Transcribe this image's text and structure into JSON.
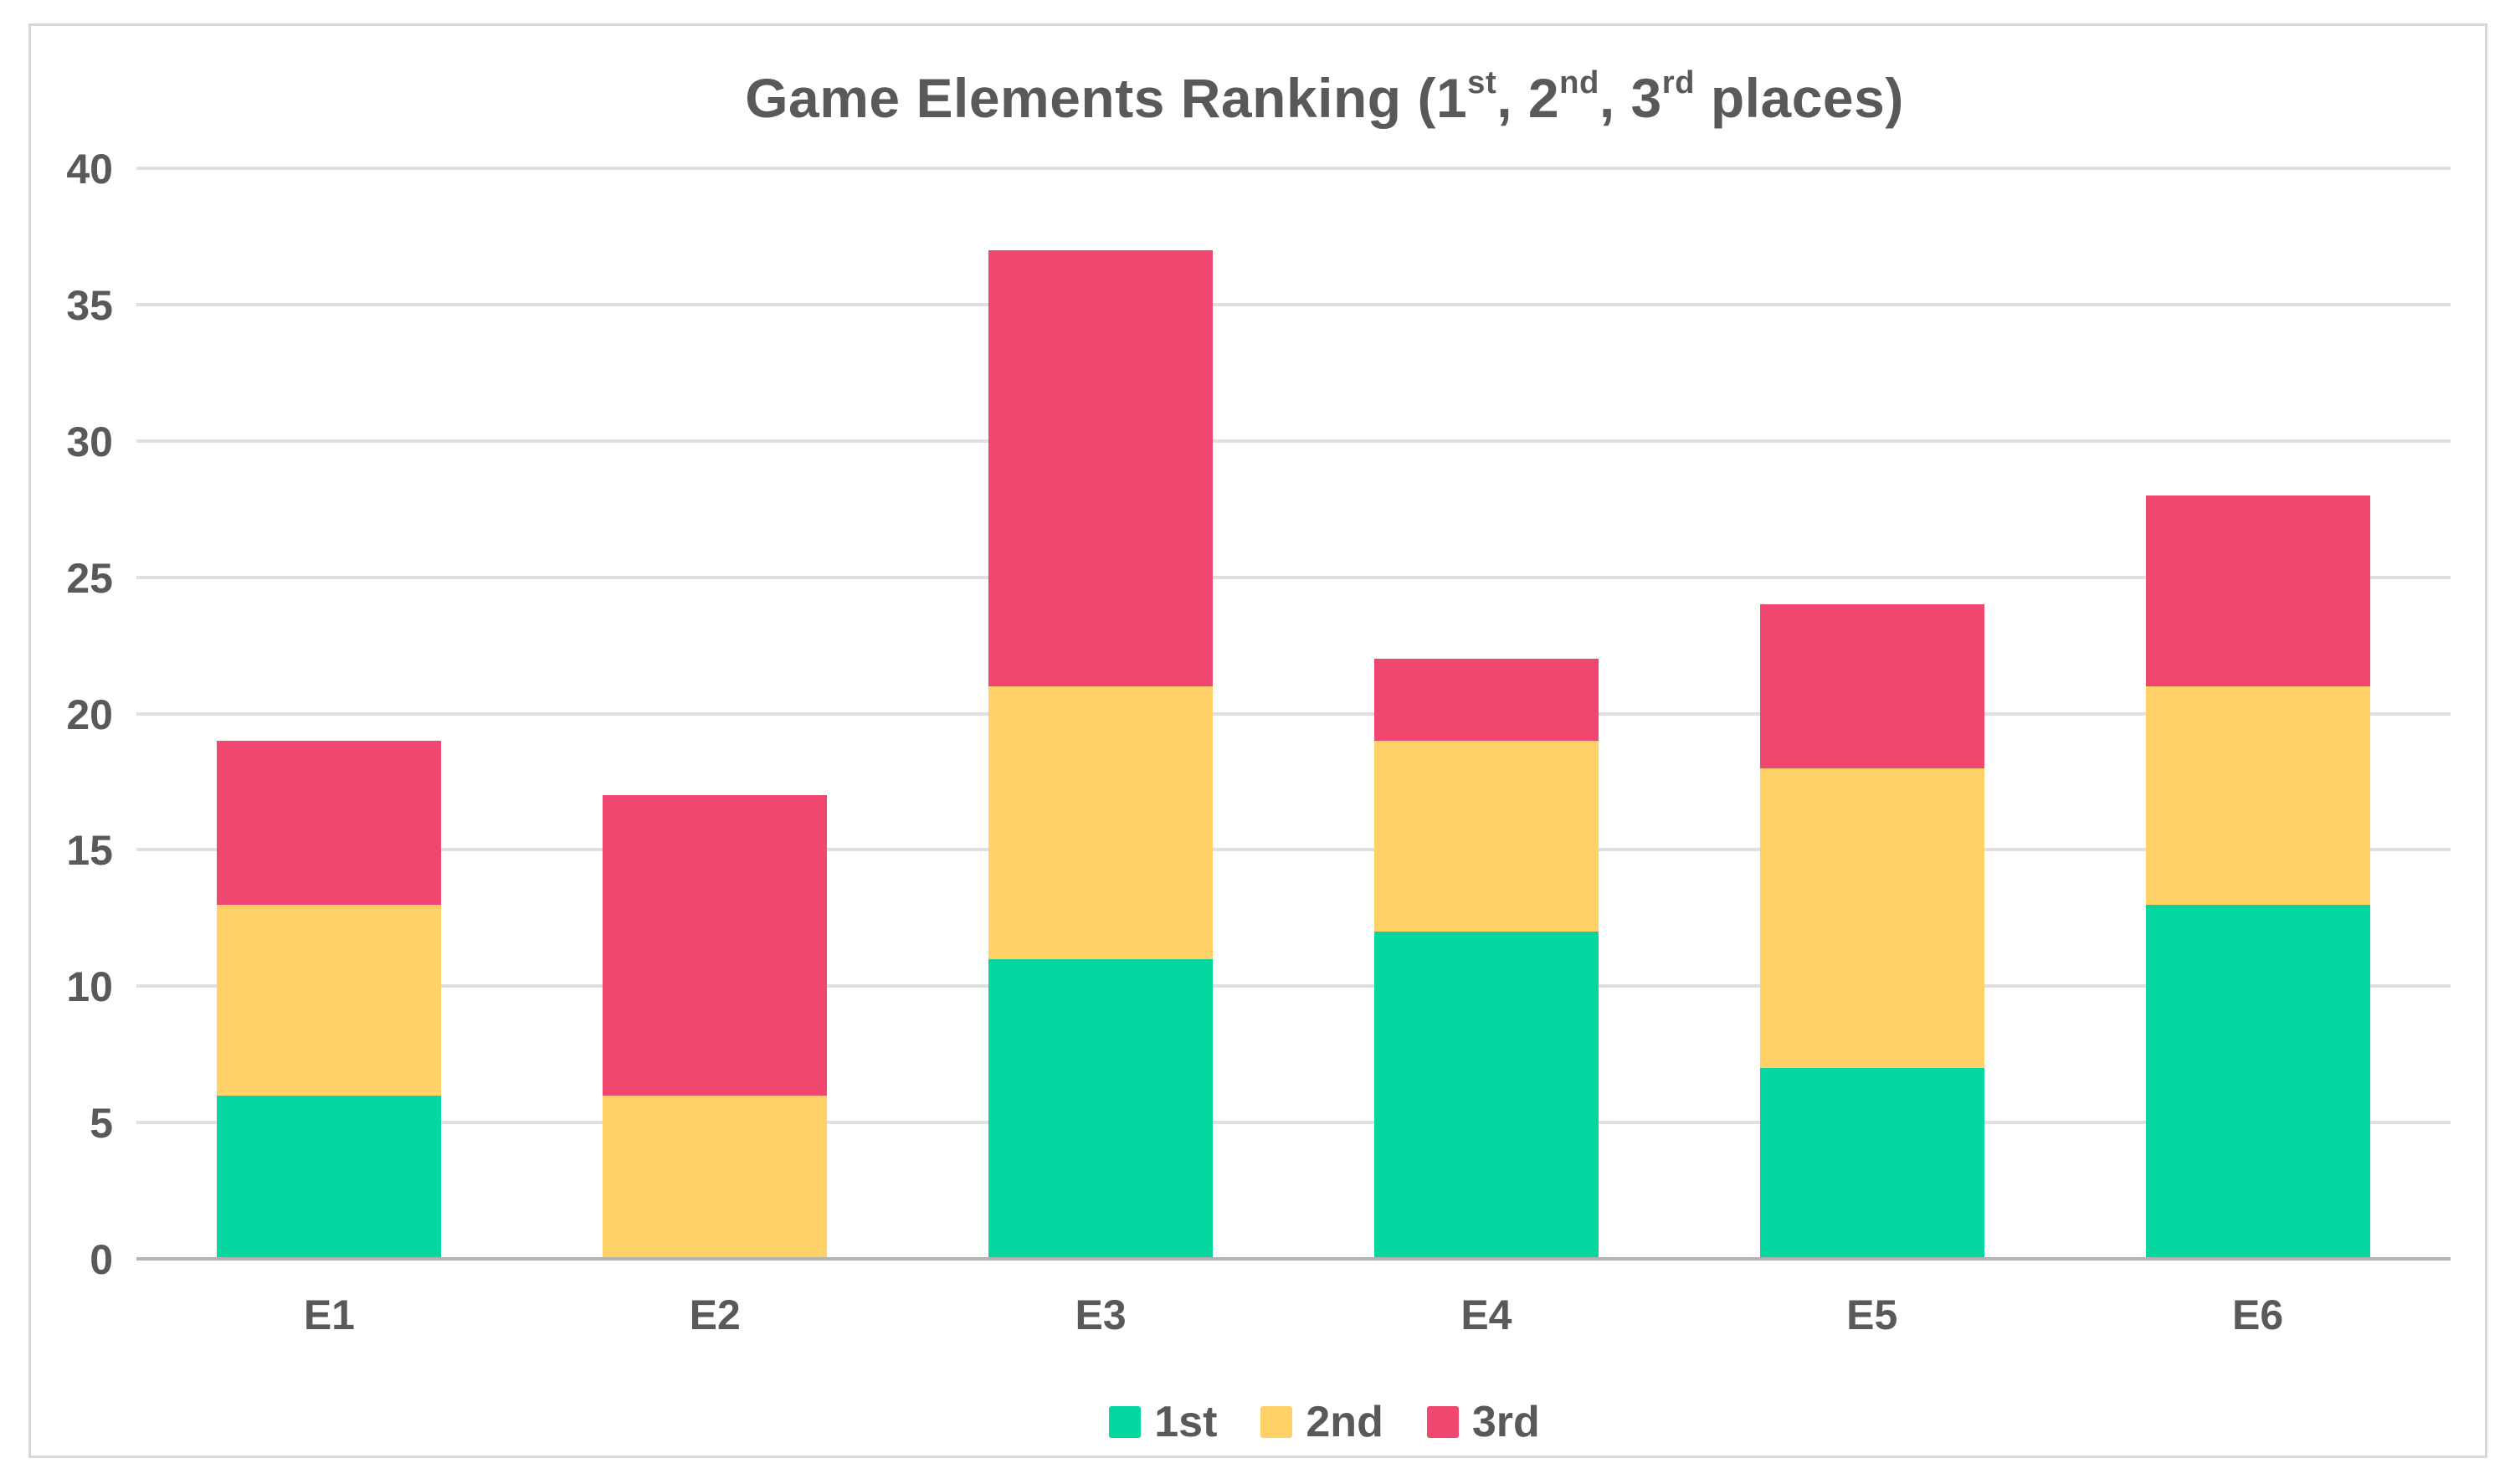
{
  "chart_data": {
    "type": "bar",
    "stacked": true,
    "title": "Game Elements Ranking (1st, 2nd, 3rd places)",
    "title_parts": [
      {
        "text": "Game Elements Ranking (1"
      },
      {
        "sup": "st"
      },
      {
        "text": ", 2"
      },
      {
        "sup": "nd"
      },
      {
        "text": ", 3"
      },
      {
        "sup": "rd"
      },
      {
        "text": " places)"
      }
    ],
    "categories": [
      "E1",
      "E2",
      "E3",
      "E4",
      "E5",
      "E6"
    ],
    "series": [
      {
        "name": "1st",
        "color": "#06D6A0",
        "values": [
          6,
          0,
          11,
          12,
          7,
          13
        ]
      },
      {
        "name": "2nd",
        "color": "#FFD166",
        "values": [
          7,
          6,
          10,
          7,
          11,
          8
        ]
      },
      {
        "name": "3rd",
        "color": "#EF476F",
        "values": [
          6,
          11,
          16,
          3,
          6,
          7
        ]
      }
    ],
    "stack_totals": [
      19,
      17,
      37,
      22,
      24,
      28
    ],
    "xlabel": "",
    "ylabel": "",
    "ylim": [
      0,
      40
    ],
    "yticks": [
      0,
      5,
      10,
      15,
      20,
      25,
      30,
      35,
      40
    ],
    "grid": "horizontal",
    "legend_position": "bottom-center"
  },
  "styles": {
    "background": "#FFFFFF",
    "card_border_color": "#D8D8D8",
    "text_color": "#58595B",
    "gridline_color": "#E0E0E0",
    "axis_line_color": "#B2B2B2"
  }
}
